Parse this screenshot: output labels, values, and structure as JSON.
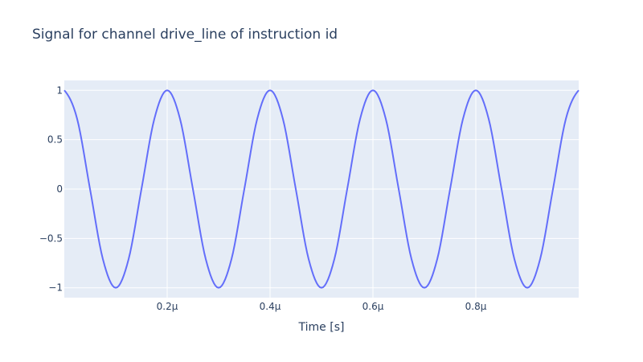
{
  "chart_data": {
    "type": "line",
    "title": "Signal for channel drive_line of instruction id",
    "xlabel": "Time [s]",
    "ylabel": "",
    "xlim": [
      0.0,
      1e-06
    ],
    "ylim": [
      -1.1,
      1.1
    ],
    "x_ticks": [
      {
        "value": 2e-07,
        "label": "0.2µ"
      },
      {
        "value": 4e-07,
        "label": "0.4µ"
      },
      {
        "value": 6e-07,
        "label": "0.6µ"
      },
      {
        "value": 8e-07,
        "label": "0.8µ"
      }
    ],
    "y_ticks": [
      {
        "value": 1,
        "label": "1"
      },
      {
        "value": 0.5,
        "label": "0.5"
      },
      {
        "value": 0,
        "label": "0"
      },
      {
        "value": -0.5,
        "label": "−0.5"
      },
      {
        "value": -1,
        "label": "−1"
      }
    ],
    "grid": true,
    "series": [
      {
        "color": "#636efa",
        "x": [
          0,
          2.5e-08,
          5e-08,
          7.5e-08,
          1e-07,
          1.25e-07,
          1.5e-07,
          1.75e-07,
          2e-07,
          2.25e-07,
          2.5e-07,
          2.75e-07,
          3e-07,
          3.25e-07,
          3.5e-07,
          3.75e-07,
          4e-07,
          4.25e-07,
          4.5e-07,
          4.75e-07,
          5e-07,
          5.25e-07,
          5.5e-07,
          5.75e-07,
          6e-07,
          6.25e-07,
          6.5e-07,
          6.75e-07,
          7e-07,
          7.25e-07,
          7.5e-07,
          7.75e-07,
          8e-07,
          8.25e-07,
          8.5e-07,
          8.75e-07,
          9e-07,
          9.25e-07,
          9.5e-07,
          9.75e-07,
          1e-06
        ],
        "y": [
          1,
          0.71,
          0,
          -0.71,
          -1,
          -0.71,
          0,
          0.71,
          1,
          0.71,
          0,
          -0.71,
          -1,
          -0.71,
          0,
          0.71,
          1,
          0.71,
          0,
          -0.71,
          -1,
          -0.71,
          0,
          0.71,
          1,
          0.71,
          0,
          -0.71,
          -1,
          -0.71,
          0,
          0.71,
          1,
          0.71,
          0,
          -0.71,
          -1,
          -0.71,
          0,
          0.71,
          1
        ]
      }
    ]
  },
  "colors": {
    "plot_bg": "#e5ecf6",
    "grid": "#ffffff",
    "text": "#2a3f5f",
    "line": "#636efa"
  }
}
